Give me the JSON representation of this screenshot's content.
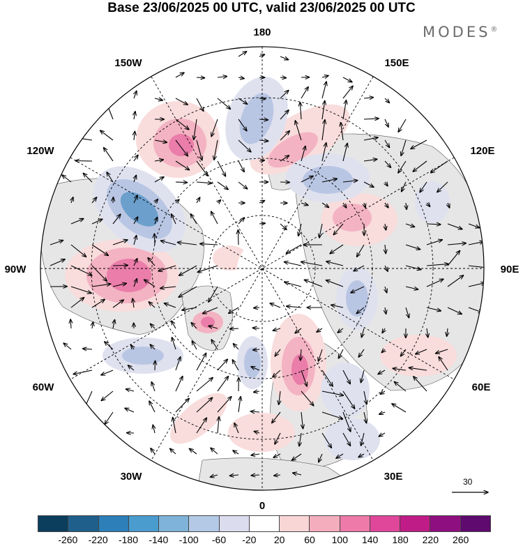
{
  "title": "Base 23/06/2025 00 UTC, valid 23/06/2025 00 UTC",
  "brand": "MODES",
  "brand_mark": "®",
  "longitude_labels": {
    "lon_180": "180",
    "lon_150w": "150W",
    "lon_150e": "150E",
    "lon_120w": "120W",
    "lon_120e": "120E",
    "lon_90w": "90W",
    "lon_90e": "90E",
    "lon_60w": "60W",
    "lon_60e": "60E",
    "lon_30w": "30W",
    "lon_30e": "30E",
    "lon_0": "0"
  },
  "reference_vector": {
    "label": "30"
  },
  "colorbar": {
    "colors": [
      "#0b3d5c",
      "#1f5f8b",
      "#2c7fb8",
      "#4a9ccf",
      "#7fb3d9",
      "#b3c9e6",
      "#dcdcef",
      "#ffffff",
      "#f8d6d6",
      "#f4adbd",
      "#ee7aa9",
      "#e0479b",
      "#c01c87",
      "#8e0f7f",
      "#5e0a6e"
    ],
    "labels": [
      "-260",
      "-220",
      "-180",
      "-140",
      "-100",
      "-60",
      "-20",
      "20",
      "60",
      "100",
      "140",
      "180",
      "220",
      "260"
    ]
  },
  "anomaly_palette": {
    "pos_weak": "#f9dcdc",
    "pos_mid": "#f3b3c2",
    "pos_strong": "#ea7da9",
    "neg_weak": "#dfe1ef",
    "neg_mid": "#b9c6e3",
    "neg_strong": "#6c9fcc",
    "land": "#e6e6e6"
  }
}
